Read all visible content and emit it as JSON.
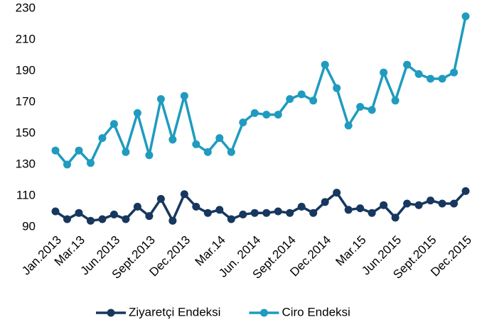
{
  "chart_data": {
    "type": "line",
    "categories": [
      "Jan.2013",
      null,
      "Mar.13",
      null,
      null,
      "Jun.2013",
      null,
      null,
      "Sept.2013",
      null,
      null,
      "Dec.2013",
      null,
      null,
      "Mar.14",
      null,
      null,
      "Jun. 2014",
      null,
      null,
      "Sept.2014",
      null,
      null,
      "Dec.2014",
      null,
      null,
      "Mar.15",
      null,
      null,
      "Jun.2015",
      null,
      null,
      "Sept.2015",
      null,
      null,
      "Dec.2015"
    ],
    "series": [
      {
        "name": "Ziyaretçi Endeksi",
        "color": "#17375e",
        "values": [
          100,
          95,
          99,
          94,
          95,
          98,
          95,
          103,
          97,
          108,
          94,
          111,
          103,
          99,
          101,
          95,
          98,
          99,
          99,
          100,
          99,
          103,
          99,
          106,
          112,
          101,
          102,
          99,
          104,
          96,
          105,
          104,
          107,
          105,
          105,
          113
        ]
      },
      {
        "name": "Ciro Endeksi",
        "color": "#1f9bbf",
        "values": [
          139,
          130,
          139,
          131,
          147,
          156,
          138,
          163,
          136,
          172,
          146,
          174,
          143,
          138,
          147,
          138,
          157,
          163,
          162,
          162,
          172,
          175,
          171,
          194,
          179,
          155,
          167,
          165,
          189,
          171,
          194,
          188,
          185,
          185,
          189,
          225
        ]
      }
    ],
    "ylim": [
      90,
      230
    ],
    "yticks": [
      90,
      110,
      130,
      150,
      170,
      190,
      210,
      230
    ],
    "grid": false,
    "legend": "bottom"
  }
}
